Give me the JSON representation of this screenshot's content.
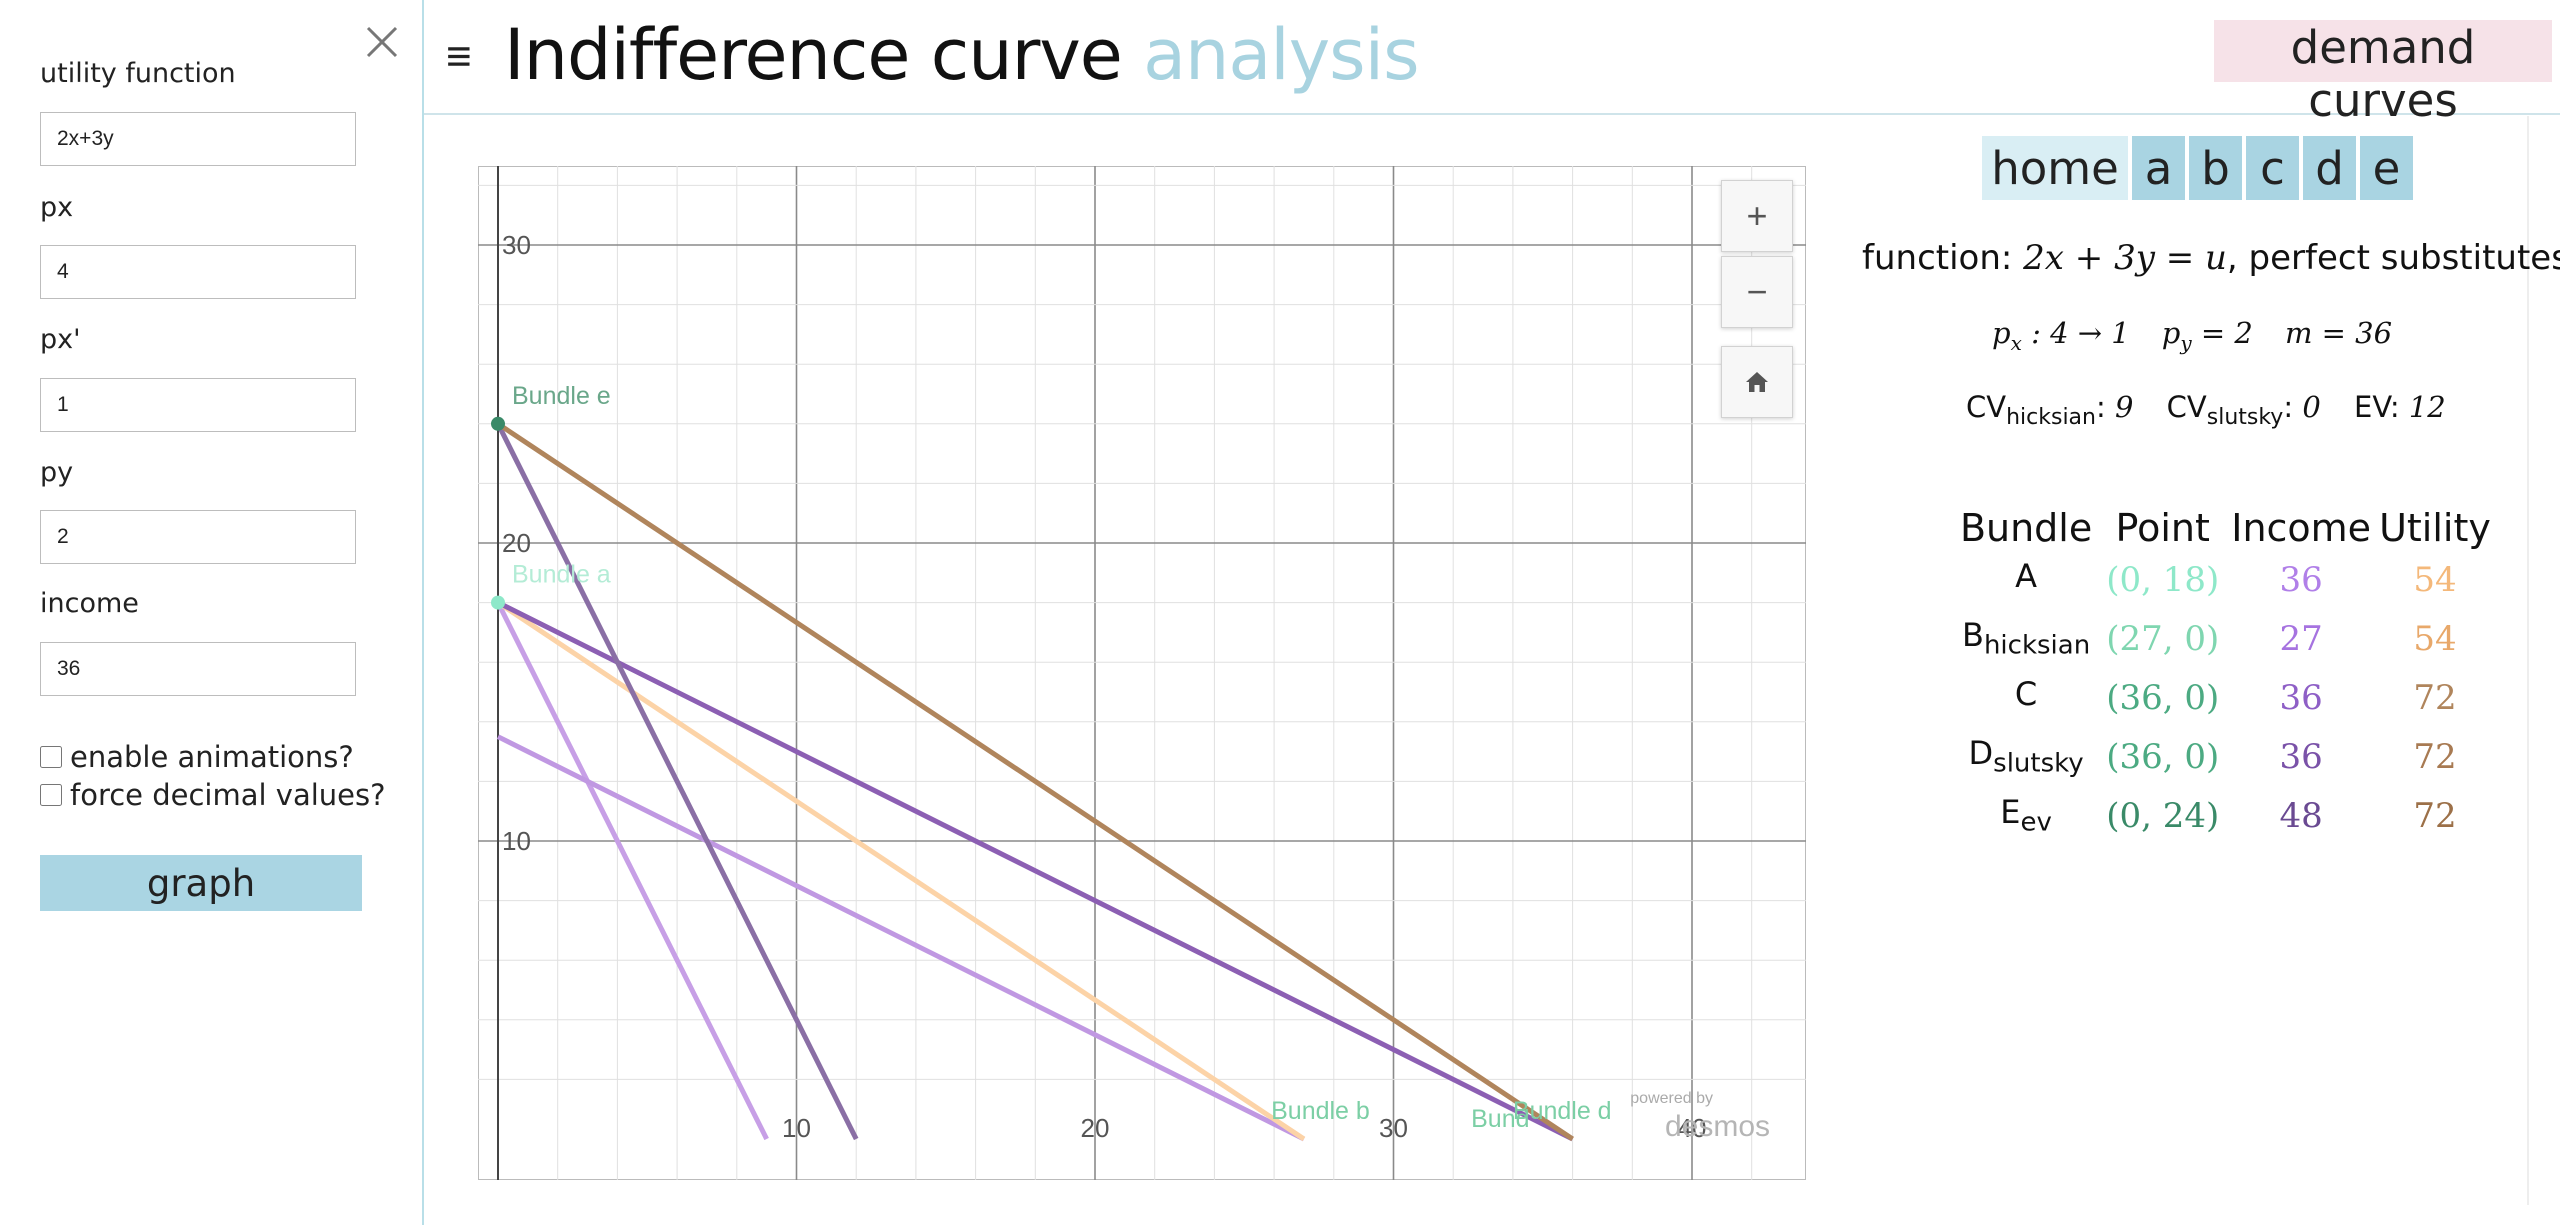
{
  "sidebar": {
    "fields": [
      {
        "label": "utility function",
        "value": "2x+3y"
      },
      {
        "label": "px",
        "value": "4"
      },
      {
        "label": "px'",
        "value": "1"
      },
      {
        "label": "py",
        "value": "2"
      },
      {
        "label": "income",
        "value": "36"
      }
    ],
    "checkboxes": [
      {
        "label": "enable animations?",
        "checked": false
      },
      {
        "label": "force decimal values?",
        "checked": false
      }
    ],
    "graph_button": "graph"
  },
  "header": {
    "menu_icon": "≡",
    "title_main": "Indifference curve",
    "title_accent": "analysis",
    "demand_button": "demand curves"
  },
  "graph": {
    "x_ticks": [
      "10",
      "20",
      "30",
      "40"
    ],
    "y_ticks": [
      "30",
      "20",
      "10"
    ],
    "zoom_in": "+",
    "zoom_out": "−",
    "powered_by": "powered by",
    "brand": "desmos",
    "labels": {
      "bundle_e": "Bundle e",
      "bundle_a": "Bundle a",
      "bundle_b": "Bundle b",
      "bundle_c": "Bund",
      "bundle_d": "Bundle d"
    },
    "colors": {
      "ic_high": "#b0855c",
      "bc_ev": "#8a6fa5",
      "ic_low": "#fcd3a7",
      "bc_new": "#8c5fb3",
      "bc_orig": "#c79fe6",
      "bc_hick": "#c098e2",
      "point_e": "#3a8a68",
      "point_a": "#8ee8c9",
      "label_e": "#6aa78a",
      "label_a": "#b4ecd6",
      "label_bd": "#7ccfa5"
    }
  },
  "panel": {
    "tabs": [
      "home",
      "a",
      "b",
      "c",
      "d",
      "e"
    ],
    "function_prefix": "function: ",
    "function_expr": "2x + 3y = u",
    "function_suffix": ", perfect substitutes",
    "prices": {
      "px": "4 → 1",
      "py": "2",
      "m": "36"
    },
    "cv_hicksian_label": "CV",
    "cv_hicksian_sub": "hicksian",
    "cv_hicksian_value": "9",
    "cv_slutsky_label": "CV",
    "cv_slutsky_sub": "slutsky",
    "cv_slutsky_value": "0",
    "ev_label": "EV:",
    "ev_value": "12",
    "table_headers": [
      "Bundle",
      "Point",
      "Income",
      "Utility"
    ],
    "rows": [
      {
        "name": "A",
        "sub": "",
        "point": "(0, 18)",
        "income": "36",
        "utility": "54",
        "point_color": "#8ee8c9",
        "income_color": "#b07fe8",
        "utility_color": "#f4b87a"
      },
      {
        "name": "B",
        "sub": "hicksian",
        "point": "(27, 0)",
        "income": "27",
        "utility": "54",
        "point_color": "#7fd6b0",
        "income_color": "#a673e0",
        "utility_color": "#e8a86a"
      },
      {
        "name": "C",
        "sub": "",
        "point": "(36, 0)",
        "income": "36",
        "utility": "72",
        "point_color": "#4caa82",
        "income_color": "#8e5fc6",
        "utility_color": "#b0855c"
      },
      {
        "name": "D",
        "sub": "slutsky",
        "point": "(36, 0)",
        "income": "36",
        "utility": "72",
        "point_color": "#4caa82",
        "income_color": "#7a52a8",
        "utility_color": "#a87a52"
      },
      {
        "name": "E",
        "sub": "ev",
        "point": "(0, 24)",
        "income": "48",
        "utility": "72",
        "point_color": "#3a8a68",
        "income_color": "#6a4a92",
        "utility_color": "#9c7048"
      }
    ]
  }
}
